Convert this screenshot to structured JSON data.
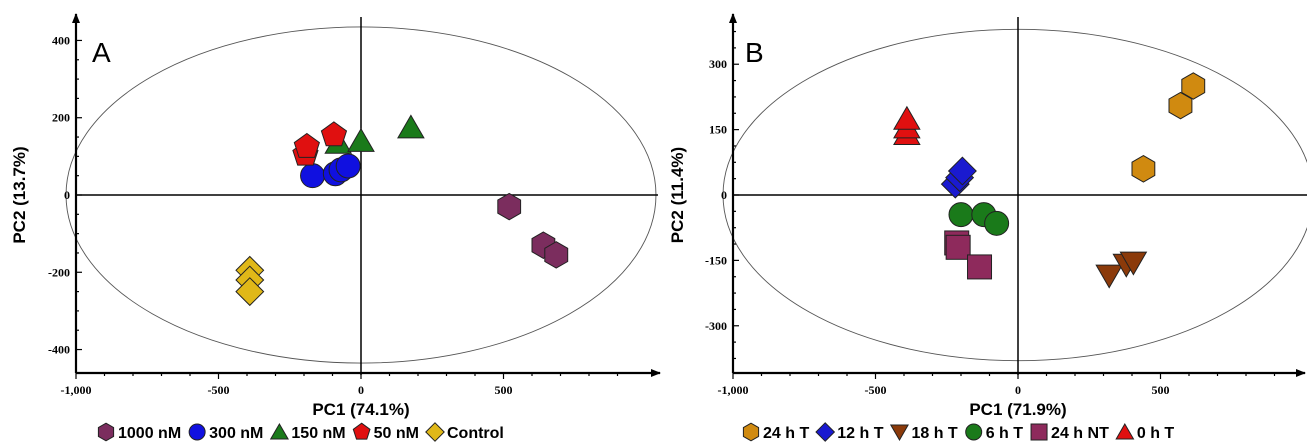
{
  "chart_data": [
    {
      "type": "scatter",
      "panel_label": "A",
      "xlabel": "PC1 (74.1%)",
      "ylabel": "PC2 (13.7%)",
      "xlim": [
        -1000,
        1000
      ],
      "ylim": [
        -440,
        440
      ],
      "x_ticks": [
        {
          "value": -1000,
          "label": "-1,000"
        },
        {
          "value": -500,
          "label": "-500"
        },
        {
          "value": 0,
          "label": "0"
        },
        {
          "value": 500,
          "label": "500"
        }
      ],
      "y_ticks": [
        {
          "value": -400,
          "label": "-400"
        },
        {
          "value": -200,
          "label": "-200"
        },
        {
          "value": 0,
          "label": "0"
        },
        {
          "value": 200,
          "label": "200"
        },
        {
          "value": 400,
          "label": "400"
        }
      ],
      "ellipse": {
        "rx": 1035,
        "ry": 435
      },
      "grid": false,
      "legend_position": "bottom",
      "series": [
        {
          "name": "1000 nM",
          "shape": "hexagon",
          "color": "#7b2d5e",
          "points": [
            [
              520,
              -30
            ],
            [
              640,
              -130
            ],
            [
              685,
              -155
            ]
          ]
        },
        {
          "name": "300 nM",
          "shape": "circle",
          "color": "#1010e0",
          "points": [
            [
              -170,
              50
            ],
            [
              -90,
              55
            ],
            [
              -70,
              65
            ],
            [
              -45,
              75
            ]
          ]
        },
        {
          "name": "150 nM",
          "shape": "triangle",
          "color": "#1a7a1a",
          "points": [
            [
              -80,
              135
            ],
            [
              0,
              140
            ],
            [
              175,
              175
            ]
          ]
        },
        {
          "name": "50 nM",
          "shape": "pentagon",
          "color": "#e01010",
          "points": [
            [
              -195,
              105
            ],
            [
              -190,
              125
            ],
            [
              -95,
              155
            ]
          ]
        },
        {
          "name": "Control",
          "shape": "diamond",
          "color": "#e0b818",
          "points": [
            [
              -390,
              -195
            ],
            [
              -390,
              -220
            ],
            [
              -390,
              -250
            ]
          ]
        }
      ]
    },
    {
      "type": "scatter",
      "panel_label": "B",
      "xlabel": "PC1 (71.9%)",
      "ylabel": "PC2 (11.4%)",
      "xlim": [
        -1000,
        1000
      ],
      "ylim": [
        -390,
        390
      ],
      "x_ticks": [
        {
          "value": -1000,
          "label": "-1,000"
        },
        {
          "value": -500,
          "label": "-500"
        },
        {
          "value": 0,
          "label": "0"
        },
        {
          "value": 500,
          "label": "500"
        }
      ],
      "y_ticks": [
        {
          "value": -300,
          "label": "-300"
        },
        {
          "value": -150,
          "label": "-150"
        },
        {
          "value": 0,
          "label": "0"
        },
        {
          "value": 150,
          "label": "150"
        },
        {
          "value": 300,
          "label": "300"
        }
      ],
      "ellipse": {
        "rx": 1035,
        "ry": 380
      },
      "grid": false,
      "legend_position": "bottom",
      "series": [
        {
          "name": "24 h T",
          "shape": "hexagon",
          "color": "#d08a10",
          "points": [
            [
              440,
              60
            ],
            [
              570,
              205
            ],
            [
              615,
              250
            ]
          ]
        },
        {
          "name": "12 h T",
          "shape": "diamond",
          "color": "#1a1ad0",
          "points": [
            [
              -220,
              25
            ],
            [
              -205,
              40
            ],
            [
              -195,
              55
            ]
          ]
        },
        {
          "name": "18 h T",
          "shape": "triangle-down",
          "color": "#8b3a0a",
          "points": [
            [
              320,
              -185
            ],
            [
              380,
              -160
            ],
            [
              405,
              -155
            ]
          ]
        },
        {
          "name": "6 h T",
          "shape": "circle",
          "color": "#1a7a1a",
          "points": [
            [
              -200,
              -45
            ],
            [
              -120,
              -45
            ],
            [
              -75,
              -65
            ]
          ]
        },
        {
          "name": "24 h NT",
          "shape": "square",
          "color": "#8e2a5c",
          "points": [
            [
              -215,
              -110
            ],
            [
              -210,
              -120
            ],
            [
              -135,
              -165
            ]
          ]
        },
        {
          "name": "0 h T",
          "shape": "triangle",
          "color": "#e01010",
          "points": [
            [
              -390,
              140
            ],
            [
              -390,
              155
            ],
            [
              -390,
              175
            ]
          ]
        }
      ]
    }
  ]
}
